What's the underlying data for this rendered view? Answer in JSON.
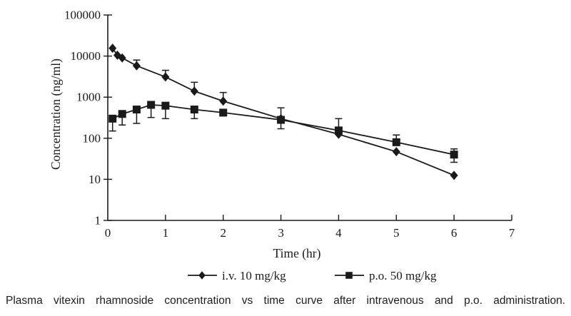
{
  "figure": {
    "caption": "Plasma vitexin rhamnoside concentration vs time curve after intravenous and p.o. administration."
  },
  "chart_data": {
    "type": "line",
    "title": "",
    "xlabel": "Time (hr)",
    "ylabel": "Concentration (ng/ml)",
    "grid": false,
    "legend_position": "bottom",
    "ink_color": "#1a1a1a",
    "x_axis": {
      "min": 0,
      "max": 7,
      "ticks": [
        0,
        1,
        2,
        3,
        4,
        5,
        6,
        7
      ],
      "tick_labels": [
        "0",
        "1",
        "2",
        "3",
        "4",
        "5",
        "6",
        "7"
      ]
    },
    "y_axis": {
      "scale": "log",
      "min": 1,
      "max": 100000,
      "ticks": [
        1,
        10,
        100,
        1000,
        10000,
        100000
      ],
      "tick_labels": [
        "1",
        "10",
        "100",
        "1000",
        "10000",
        "100000"
      ]
    },
    "series": [
      {
        "name": "i.v. 10 mg/kg",
        "marker": "diamond",
        "color": "#1a1a1a",
        "points": [
          {
            "t": 0.083,
            "c": 15500
          },
          {
            "t": 0.167,
            "c": 10500
          },
          {
            "t": 0.25,
            "c": 9000
          },
          {
            "t": 0.5,
            "c": 5800,
            "err_up": 8000
          },
          {
            "t": 1,
            "c": 3100,
            "err_up": 4500
          },
          {
            "t": 1.5,
            "c": 1400,
            "err_up": 2300
          },
          {
            "t": 2,
            "c": 800,
            "err_up": 1300
          },
          {
            "t": 3,
            "c": 300,
            "err_up": 550
          },
          {
            "t": 4,
            "c": 125
          },
          {
            "t": 5,
            "c": 47
          },
          {
            "t": 6,
            "c": 12.5
          }
        ]
      },
      {
        "name": "p.o. 50 mg/kg",
        "marker": "square",
        "color": "#1a1a1a",
        "points": [
          {
            "t": 0.083,
            "c": 300,
            "err_dn": 150
          },
          {
            "t": 0.25,
            "c": 390,
            "err_dn": 210
          },
          {
            "t": 0.5,
            "c": 500,
            "err_dn": 230
          },
          {
            "t": 0.75,
            "c": 650,
            "err_dn": 320
          },
          {
            "t": 1,
            "c": 620,
            "err_dn": 300
          },
          {
            "t": 1.5,
            "c": 500,
            "err_dn": 300
          },
          {
            "t": 2,
            "c": 420
          },
          {
            "t": 3,
            "c": 280,
            "err_dn": 170
          },
          {
            "t": 4,
            "c": 155,
            "err_up": 300
          },
          {
            "t": 5,
            "c": 80,
            "err_up": 120
          },
          {
            "t": 6,
            "c": 40,
            "err_up": 55,
            "err_dn": 26
          }
        ]
      }
    ]
  }
}
